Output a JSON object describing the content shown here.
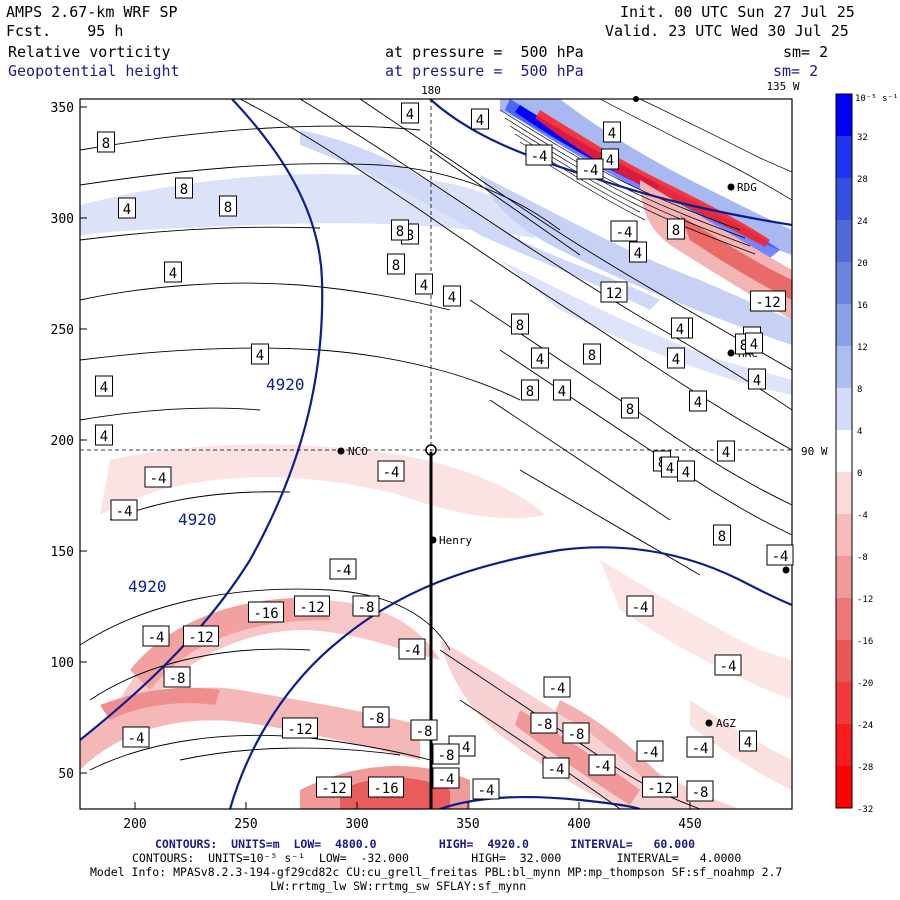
{
  "header": {
    "model": "AMPS 2.67-km WRF SP",
    "forecast": "Fcst.    95 h",
    "field1": "Relative vorticity",
    "field2": "Geopotential height",
    "pressure1": "at pressure =  500 hPa",
    "pressure2": "at pressure =  500 hPa",
    "init": "Init. 00 UTC Sun 27 Jul 25",
    "valid": "Valid. 23 UTC Wed 30 Jul 25",
    "sm1": "sm= 2",
    "sm2": "sm= 2"
  },
  "map": {
    "x_ticks": [
      "200",
      "250",
      "300",
      "350",
      "400",
      "450"
    ],
    "y_ticks": [
      "350",
      "300",
      "250",
      "200",
      "150",
      "100",
      "50"
    ],
    "lon_labels": {
      "top_180": "180",
      "top_135w": "135 W",
      "right_90w": "90 W"
    },
    "stations": [
      {
        "name": "NCO"
      },
      {
        "name": "Henry"
      },
      {
        "name": "RDG"
      },
      {
        "name": "HRC"
      },
      {
        "name": "AGZ"
      }
    ],
    "height_labels": [
      "4920",
      "4920",
      "4920"
    ],
    "vort_labels": [
      "8",
      "4",
      "4",
      "8",
      "4",
      "8",
      "8",
      "8",
      "4",
      "8",
      "4",
      "4",
      "8",
      "4",
      "8",
      "4",
      "8",
      "4",
      "4",
      "8",
      "4",
      "4",
      "8",
      "12",
      "-12",
      "8",
      "4",
      "4",
      "8",
      "4",
      "4",
      "4",
      "8",
      "4",
      "4",
      "4",
      "8",
      "-4",
      "-4",
      "-4",
      "-4",
      "-4",
      "4",
      "4",
      "4",
      "-4",
      "-16",
      "-12",
      "-8",
      "-4",
      "-12",
      "-4",
      "-8",
      "-4",
      "-4",
      "-4",
      "-8",
      "-8",
      "-4",
      "-12",
      "-4",
      "-8",
      "-8",
      "-4",
      "-4",
      "-12",
      "-16",
      "-4",
      "-4",
      "-12",
      "-8",
      "-4",
      "4",
      "-4",
      "-8",
      "-4",
      "-4"
    ]
  },
  "colorbar": {
    "unit": "10⁻⁵ s⁻¹",
    "labels": [
      "32",
      "28",
      "24",
      "20",
      "16",
      "12",
      "8",
      "4",
      "0",
      "-4",
      "-8",
      "-12",
      "-16",
      "-20",
      "-24",
      "-28",
      "-32"
    ],
    "colors": [
      "#0000ff",
      "#1f33f0",
      "#3550e0",
      "#4f6ad8",
      "#6a84dc",
      "#8aa0e6",
      "#aebdf0",
      "#d4dcf8",
      "#ffffff",
      "#fbdcdc",
      "#f6bcbc",
      "#f29a9a",
      "#ee7878",
      "#ea5656",
      "#f03a3a",
      "#f81c1c",
      "#ff0000"
    ]
  },
  "footer": {
    "line1": "CONTOURS:  UNITS=m  LOW=  4800.0         HIGH=  4920.0      INTERVAL=   60.000",
    "line2": "CONTOURS:  UNITS=10⁻⁵ s⁻¹  LOW=  -32.000         HIGH=  32.000        INTERVAL=   4.0000",
    "line3": "Model Info: MPASv8.2.3-194-gf29cd82c CU:cu_grell_freitas PBL:bl_mynn MP:mp_thompson SF:sf_noahmp 2.7",
    "line4": "LW:rrtmg_lw SW:rrtmg_sw SFLAY:sf_mynn"
  }
}
